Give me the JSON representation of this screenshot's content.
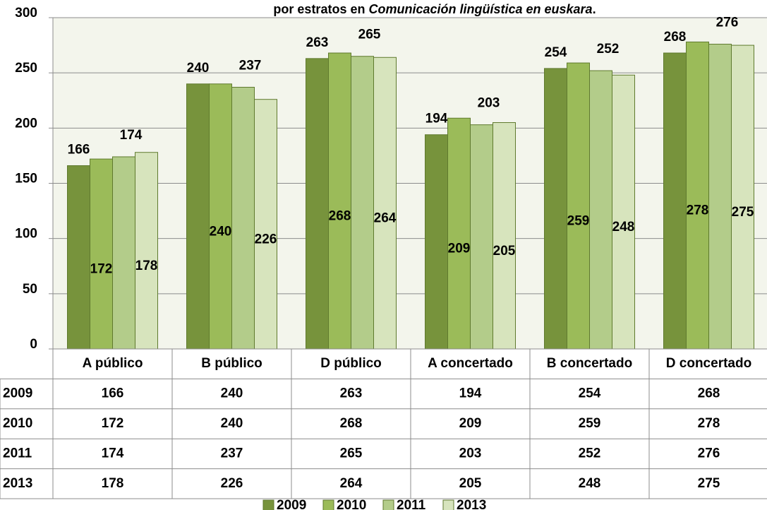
{
  "chart_data": {
    "type": "bar",
    "title": [
      "por estratos en ",
      "Comunicación lingüística en euskara",
      "."
    ],
    "categories": [
      "A público",
      "B público",
      "D público",
      "A concertado",
      "B concertado",
      "D concertado"
    ],
    "series": [
      {
        "name": "2009",
        "color": "#77933c",
        "values": [
          166,
          240,
          263,
          194,
          254,
          268
        ]
      },
      {
        "name": "2010",
        "color": "#9bbb59",
        "values": [
          172,
          240,
          268,
          209,
          259,
          278
        ]
      },
      {
        "name": "2011",
        "color": "#b3cc8a",
        "values": [
          174,
          237,
          265,
          203,
          252,
          276
        ]
      },
      {
        "name": "2013",
        "color": "#d7e4bd",
        "values": [
          178,
          226,
          264,
          205,
          248,
          275
        ]
      }
    ],
    "ylim": [
      0,
      300
    ],
    "yticks": [
      0,
      50,
      100,
      150,
      200,
      250,
      300
    ],
    "grid": true,
    "legend": "bottom"
  }
}
